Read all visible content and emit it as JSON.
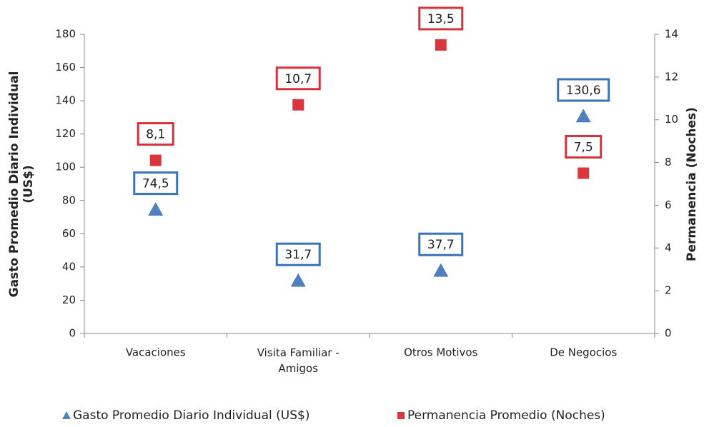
{
  "chart_data": {
    "type": "scatter",
    "y_label": "Gasto Promedio Diario Individual (US$)",
    "y2_label": "Permanencia (Noches)",
    "categories": [
      "Vacaciones",
      "Visita Familiar - Amigos",
      "Otros Motivos",
      "De Negocios"
    ],
    "series": [
      {
        "name": "Gasto Promedio Diario Individual (US$)",
        "color": "#4f81bd",
        "label_color": "#3b73b9",
        "marker": "triangle",
        "values": [
          74.5,
          31.7,
          37.7,
          130.6
        ],
        "value_labels": [
          "74,5",
          "31,7",
          "37,7",
          "130,6"
        ]
      },
      {
        "name": "Permanencia Promedio (Noches)",
        "color": "#d9363e",
        "label_color": "#d7323c",
        "marker": "square",
        "axis": "y2",
        "values": [
          8.1,
          10.7,
          13.5,
          7.5
        ],
        "value_labels": [
          "8,1",
          "10,7",
          "13,5",
          "7,5"
        ]
      }
    ],
    "ylim": [
      0,
      180
    ],
    "yticks": [
      0,
      20,
      40,
      60,
      80,
      100,
      120,
      140,
      160,
      180
    ],
    "y2lim": [
      0,
      14
    ],
    "y2ticks": [
      0,
      2,
      4,
      6,
      8,
      10,
      12,
      14
    ],
    "legend": "bottom"
  }
}
